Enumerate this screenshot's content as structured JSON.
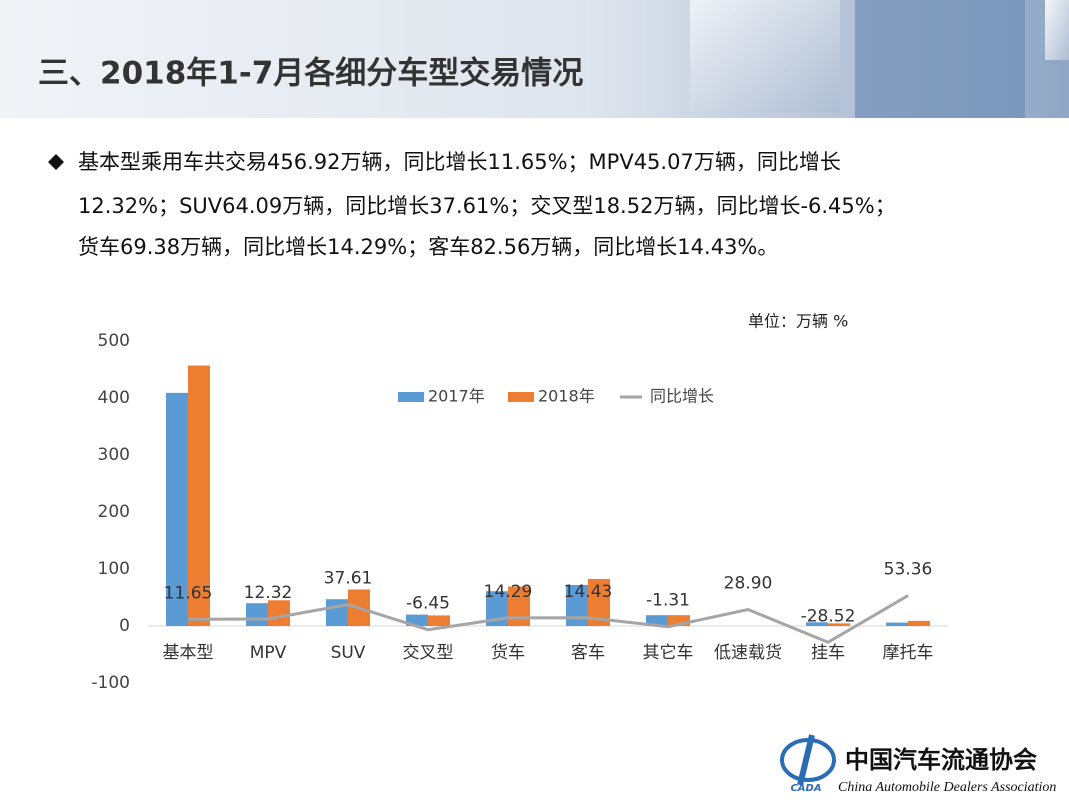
{
  "header": {
    "title": "三、2018年1-7月各细分车型交易情况"
  },
  "bullet": {
    "lines": [
      "基本型乘用车共交易456.92万辆，同比增长11.65%；MPV45.07万辆，同比增长",
      "12.32%；SUV64.09万辆，同比增长37.61%；交叉型18.52万辆，同比增长-6.45%；",
      "货车69.38万辆，同比增长14.29%；客车82.56万辆，同比增长14.43%。"
    ]
  },
  "chart_data": {
    "type": "bar",
    "unit_label": "单位：万辆  %",
    "categories": [
      "基本型",
      "MPV",
      "SUV",
      "交叉型",
      "货车",
      "客车",
      "其它车",
      "低速载货",
      "挂车",
      "摩托车"
    ],
    "series": [
      {
        "name": "2017年",
        "color": "#5b9bd5",
        "values": [
          409,
          40,
          47,
          20,
          61,
          72,
          19,
          null,
          6.5,
          6
        ]
      },
      {
        "name": "2018年",
        "color": "#ed7d31",
        "values": [
          456.92,
          45.07,
          64.09,
          18.52,
          69.38,
          82.56,
          19,
          null,
          4.6,
          9
        ]
      },
      {
        "name": "同比增长",
        "type": "line",
        "color": "#a5a5a5",
        "values": [
          11.65,
          12.32,
          37.61,
          -6.45,
          14.29,
          14.43,
          -1.31,
          28.9,
          -28.52,
          53.36
        ],
        "value_labels": [
          "11.65",
          "12.32",
          "37.61",
          "-6.45",
          "14.29",
          "14.43",
          "-1.31",
          "28.90",
          "-28.52",
          "53.36"
        ]
      }
    ],
    "ylim": [
      -100,
      500
    ],
    "yticks": [
      -100,
      0,
      100,
      200,
      300,
      400,
      500
    ],
    "grid": false,
    "legend": "top"
  },
  "logo": {
    "name": "中国汽车流通协会",
    "english": "China Automobile Dealers Association",
    "abbr": "CADA"
  }
}
